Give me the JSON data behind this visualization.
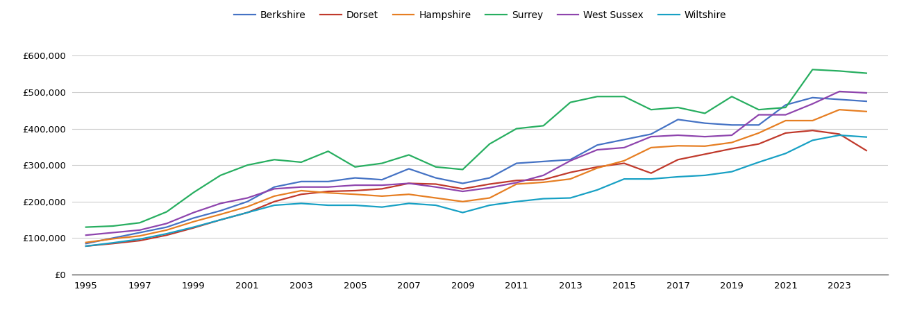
{
  "years": [
    1995,
    1996,
    1997,
    1998,
    1999,
    2000,
    2001,
    2002,
    2003,
    2004,
    2005,
    2006,
    2007,
    2008,
    2009,
    2010,
    2011,
    2012,
    2013,
    2014,
    2015,
    2016,
    2017,
    2018,
    2019,
    2020,
    2021,
    2022,
    2023,
    2024
  ],
  "Berkshire": [
    85000,
    100000,
    115000,
    130000,
    155000,
    175000,
    200000,
    240000,
    255000,
    255000,
    265000,
    260000,
    290000,
    265000,
    250000,
    265000,
    305000,
    310000,
    315000,
    355000,
    370000,
    385000,
    425000,
    415000,
    410000,
    410000,
    465000,
    485000,
    480000,
    475000
  ],
  "Dorset": [
    78000,
    85000,
    93000,
    108000,
    128000,
    150000,
    170000,
    200000,
    220000,
    228000,
    230000,
    235000,
    250000,
    248000,
    235000,
    248000,
    258000,
    260000,
    280000,
    295000,
    305000,
    278000,
    315000,
    330000,
    345000,
    358000,
    388000,
    395000,
    385000,
    340000
  ],
  "Hampshire": [
    88000,
    98000,
    106000,
    122000,
    145000,
    165000,
    186000,
    215000,
    230000,
    224000,
    220000,
    215000,
    220000,
    210000,
    200000,
    210000,
    248000,
    253000,
    262000,
    292000,
    312000,
    348000,
    353000,
    352000,
    362000,
    388000,
    422000,
    422000,
    452000,
    447000
  ],
  "Surrey": [
    130000,
    133000,
    142000,
    172000,
    225000,
    272000,
    300000,
    315000,
    308000,
    338000,
    295000,
    305000,
    328000,
    295000,
    288000,
    358000,
    400000,
    408000,
    472000,
    488000,
    488000,
    452000,
    458000,
    442000,
    488000,
    452000,
    458000,
    562000,
    558000,
    552000
  ],
  "West Sussex": [
    108000,
    115000,
    122000,
    140000,
    170000,
    195000,
    210000,
    235000,
    240000,
    240000,
    245000,
    245000,
    250000,
    240000,
    228000,
    238000,
    252000,
    272000,
    312000,
    342000,
    348000,
    378000,
    382000,
    378000,
    382000,
    438000,
    438000,
    468000,
    502000,
    498000
  ],
  "Wiltshire": [
    78000,
    87000,
    97000,
    112000,
    130000,
    150000,
    170000,
    190000,
    195000,
    190000,
    190000,
    185000,
    195000,
    190000,
    170000,
    190000,
    200000,
    208000,
    210000,
    232000,
    262000,
    262000,
    268000,
    272000,
    282000,
    308000,
    332000,
    368000,
    382000,
    377000
  ],
  "colors": {
    "Berkshire": "#4472c4",
    "Dorset": "#c0392b",
    "Hampshire": "#e67e22",
    "Surrey": "#27ae60",
    "West Sussex": "#8e44ad",
    "Wiltshire": "#17a0c4"
  },
  "ylabel_ticks": [
    0,
    100000,
    200000,
    300000,
    400000,
    500000,
    600000
  ],
  "xlabel_ticks": [
    1995,
    1997,
    1999,
    2001,
    2003,
    2005,
    2007,
    2009,
    2011,
    2013,
    2015,
    2017,
    2019,
    2021,
    2023
  ],
  "ylim": [
    0,
    650000
  ],
  "xlim": [
    1994.5,
    2024.8
  ],
  "grid_color": "#cccccc",
  "legend_order": [
    "Berkshire",
    "Dorset",
    "Hampshire",
    "Surrey",
    "West Sussex",
    "Wiltshire"
  ]
}
